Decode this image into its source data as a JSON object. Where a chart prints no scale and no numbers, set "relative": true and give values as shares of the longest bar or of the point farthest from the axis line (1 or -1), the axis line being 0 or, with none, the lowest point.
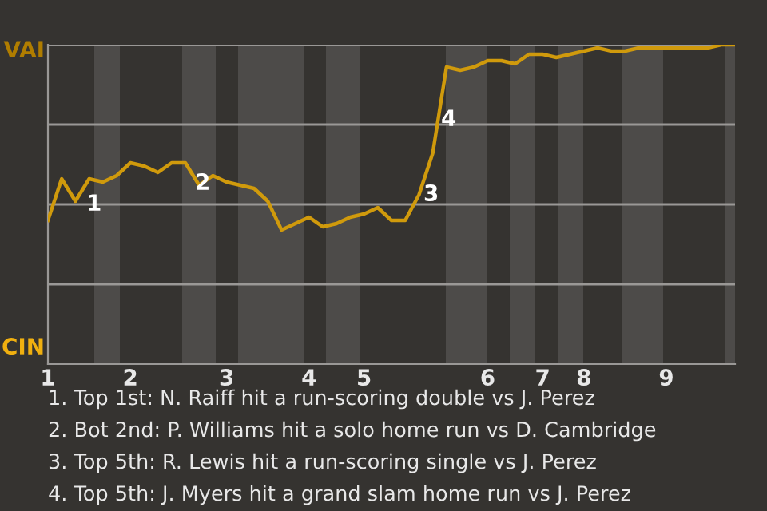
{
  "chart_data": {
    "type": "line",
    "relative": true,
    "categories": [
      "1",
      null,
      null,
      null,
      null,
      null,
      "2",
      null,
      null,
      null,
      null,
      null,
      null,
      "3",
      null,
      null,
      null,
      null,
      null,
      "4",
      null,
      null,
      null,
      "5",
      null,
      null,
      null,
      null,
      null,
      null,
      null,
      null,
      "6",
      null,
      null,
      null,
      "7",
      null,
      null,
      "8",
      null,
      null,
      null,
      null,
      null,
      "9",
      null,
      null,
      null,
      null,
      null
    ],
    "series": [
      {
        "color": "#d09a0c",
        "values": [
          0.45,
          0.58,
          0.51,
          0.58,
          0.57,
          0.59,
          0.63,
          0.62,
          0.6,
          0.63,
          0.63,
          0.56,
          0.59,
          0.57,
          0.56,
          0.55,
          0.51,
          0.42,
          0.44,
          0.46,
          0.43,
          0.44,
          0.46,
          0.47,
          0.49,
          0.45,
          0.45,
          0.53,
          0.66,
          0.93,
          0.92,
          0.93,
          0.95,
          0.95,
          0.94,
          0.97,
          0.97,
          0.96,
          0.97,
          0.98,
          0.99,
          0.98,
          0.98,
          0.99,
          0.99,
          0.99,
          0.99,
          0.99,
          0.99,
          1.0,
          1.0
        ]
      }
    ],
    "legend": false,
    "marker": "none",
    "line_style": "solid",
    "ref_lines": [
      {
        "axis": "y",
        "value": 0.25,
        "color": "#9a9896"
      },
      {
        "axis": "y",
        "value": 0.5,
        "color": "#9a9896"
      },
      {
        "axis": "y",
        "value": 0.75,
        "color": "#9a9896"
      },
      {
        "axis": "y",
        "value": 1,
        "color": "#9a9896"
      }
    ],
    "annotations": [
      "VAI",
      "CIN",
      "1",
      "2",
      "3",
      "4",
      "1. Top 1st: N. Raiff hit a run-scoring double vs J. Perez",
      "2. Bot 2nd: P. Williams hit a solo home run vs D. Cambridge",
      "3. Top 5th: R. Lewis hit a run-scoring single vs J. Perez",
      "4. Top 5th: J. Myers hit a grand slam home run vs J. Perez"
    ]
  }
}
